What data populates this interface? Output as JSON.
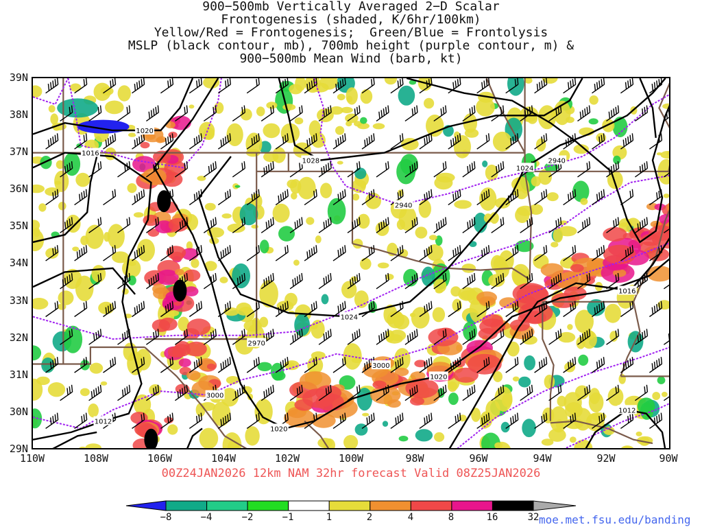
{
  "title_lines": [
    "900−500mb Vertically Averaged 2−D Scalar",
    "Frontogenesis (shaded, K/6hr/100km)",
    "Yellow/Red = Frontogenesis;  Green/Blue = Frontolysis",
    "MSLP (black contour, mb), 700mb height (purple contour, m) &",
    "900−500mb Mean Wind (barb, kt)"
  ],
  "latitude_labels": [
    "39N",
    "38N",
    "37N",
    "36N",
    "35N",
    "34N",
    "33N",
    "32N",
    "31N",
    "30N",
    "29N"
  ],
  "longitude_labels": [
    "110W",
    "108W",
    "106W",
    "104W",
    "102W",
    "100W",
    "98W",
    "96W",
    "94W",
    "92W",
    "90W"
  ],
  "map_extent": {
    "lon_min": -110,
    "lon_max": -90,
    "lat_min": 29,
    "lat_max": 39
  },
  "isobar_labels": [
    {
      "text": "1020",
      "lon": -106.5,
      "lat": 37.6
    },
    {
      "text": "1016",
      "lon": -108.2,
      "lat": 37.0
    },
    {
      "text": "1028",
      "lon": -101.3,
      "lat": 36.8
    },
    {
      "text": "1024",
      "lon": -94.6,
      "lat": 36.6
    },
    {
      "text": "1024",
      "lon": -100.1,
      "lat": 32.6
    },
    {
      "text": "1020",
      "lon": -97.3,
      "lat": 31.0
    },
    {
      "text": "1016",
      "lon": -91.4,
      "lat": 33.3
    },
    {
      "text": "1012",
      "lon": -107.8,
      "lat": 29.8
    },
    {
      "text": "1020",
      "lon": -102.3,
      "lat": 29.6
    },
    {
      "text": "1012",
      "lon": -91.4,
      "lat": 30.1
    }
  ],
  "height_labels": [
    {
      "text": "2940",
      "lon": -93.6,
      "lat": 36.8
    },
    {
      "text": "2940",
      "lon": -98.4,
      "lat": 35.6
    },
    {
      "text": "2970",
      "lon": -103.0,
      "lat": 31.9
    },
    {
      "text": "3000",
      "lon": -99.1,
      "lat": 31.3
    },
    {
      "text": "3000",
      "lon": -104.3,
      "lat": 30.5
    }
  ],
  "forecast_caption": "00Z24JAN2026 12km NAM 32hr forecast Valid 08Z25JAN2026",
  "colorbar": {
    "ticks": [
      "−8",
      "−4",
      "−2",
      "−1",
      "1",
      "2",
      "4",
      "8",
      "16",
      "32"
    ],
    "colors": [
      "#2222ee",
      "#11aa88",
      "#22cc88",
      "#22dd22",
      "#ffffff",
      "#e6dc3a",
      "#f09030",
      "#f04848",
      "#e8158c",
      "#000000",
      "#aaaaaa"
    ]
  },
  "colors": {
    "isobar": "#000000",
    "height_contour": "#a020f0",
    "border": "#7a5a4a",
    "frontogenesis_weak": "#e6dc3a",
    "frontogenesis_moderate": "#f09030",
    "frontogenesis_strong": "#f04848",
    "frontogenesis_intense": "#e8158c",
    "frontogenesis_extreme": "#000000",
    "frontolysis_weak": "#22cc44",
    "frontolysis_moderate": "#11aa88",
    "frontolysis_strong": "#2222ee",
    "caption": "#ee5555",
    "credit": "#4466ee"
  },
  "credit": "moe.met.fsu.edu/banding"
}
